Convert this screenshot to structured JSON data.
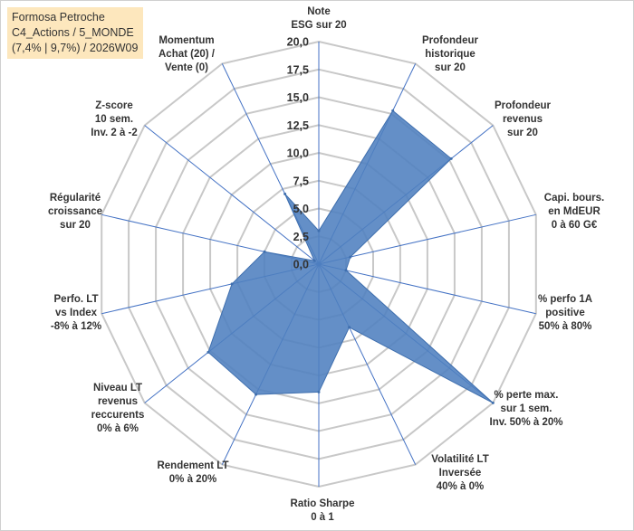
{
  "header": {
    "line1": "Formosa Petroche",
    "line2": "C4_Actions / 5_MONDE",
    "line3": "(7,4% | 9,7%) / 2026W09"
  },
  "chart_data": {
    "type": "radar",
    "rmin": 0,
    "rmax": 20,
    "ticks": [
      "0,0",
      "2,5",
      "5,0",
      "7,5",
      "10,0",
      "12,5",
      "15,0",
      "17,5",
      "20,0"
    ],
    "grid": true,
    "fill_color": "#4f7fbf",
    "grid_color": "#c8c8c8",
    "axis_color": "#4472c4",
    "axes": [
      {
        "label": [
          "Note",
          "ESG sur 20"
        ],
        "value": 3.0
      },
      {
        "label": [
          "Profondeur",
          "historique",
          "sur 20"
        ],
        "value": 15.3
      },
      {
        "label": [
          "Profondeur",
          "revenus",
          "sur 20"
        ],
        "value": 15.2
      },
      {
        "label": [
          "Capi. bours.",
          "en MdEUR",
          "0 à 60 G€"
        ],
        "value": 2.9
      },
      {
        "label": [
          "% perfo 1A",
          "positive",
          "50% à 80%"
        ],
        "value": 2.5
      },
      {
        "label": [
          "% perte max.",
          "sur 1 sem.",
          "Inv. 50% à 20%"
        ],
        "value": 20.0
      },
      {
        "label": [
          "Volatilité LT",
          "Inversée",
          "40% à 0%"
        ],
        "value": 6.3
      },
      {
        "label": [
          "Ratio Sharpe",
          "0 à 1"
        ],
        "value": 11.5
      },
      {
        "label": [
          "Rendement LT",
          "0% à 20%"
        ],
        "value": 13.0
      },
      {
        "label": [
          "Niveau LT",
          "revenus",
          "reccurents",
          "0% à 6%"
        ],
        "value": 12.7
      },
      {
        "label": [
          "Perfo. LT",
          "vs Index",
          "-8% à 12%"
        ],
        "value": 8.0
      },
      {
        "label": [
          "Régularité",
          "croissance",
          "sur 20"
        ],
        "value": 5.0
      },
      {
        "label": [
          "Z-score",
          "10 sem.",
          "Inv. 2 à -2"
        ],
        "value": 0.5
      },
      {
        "label": [
          "Momentum",
          "Achat (20) /",
          "Vente (0)"
        ],
        "value": 7.0
      }
    ]
  }
}
